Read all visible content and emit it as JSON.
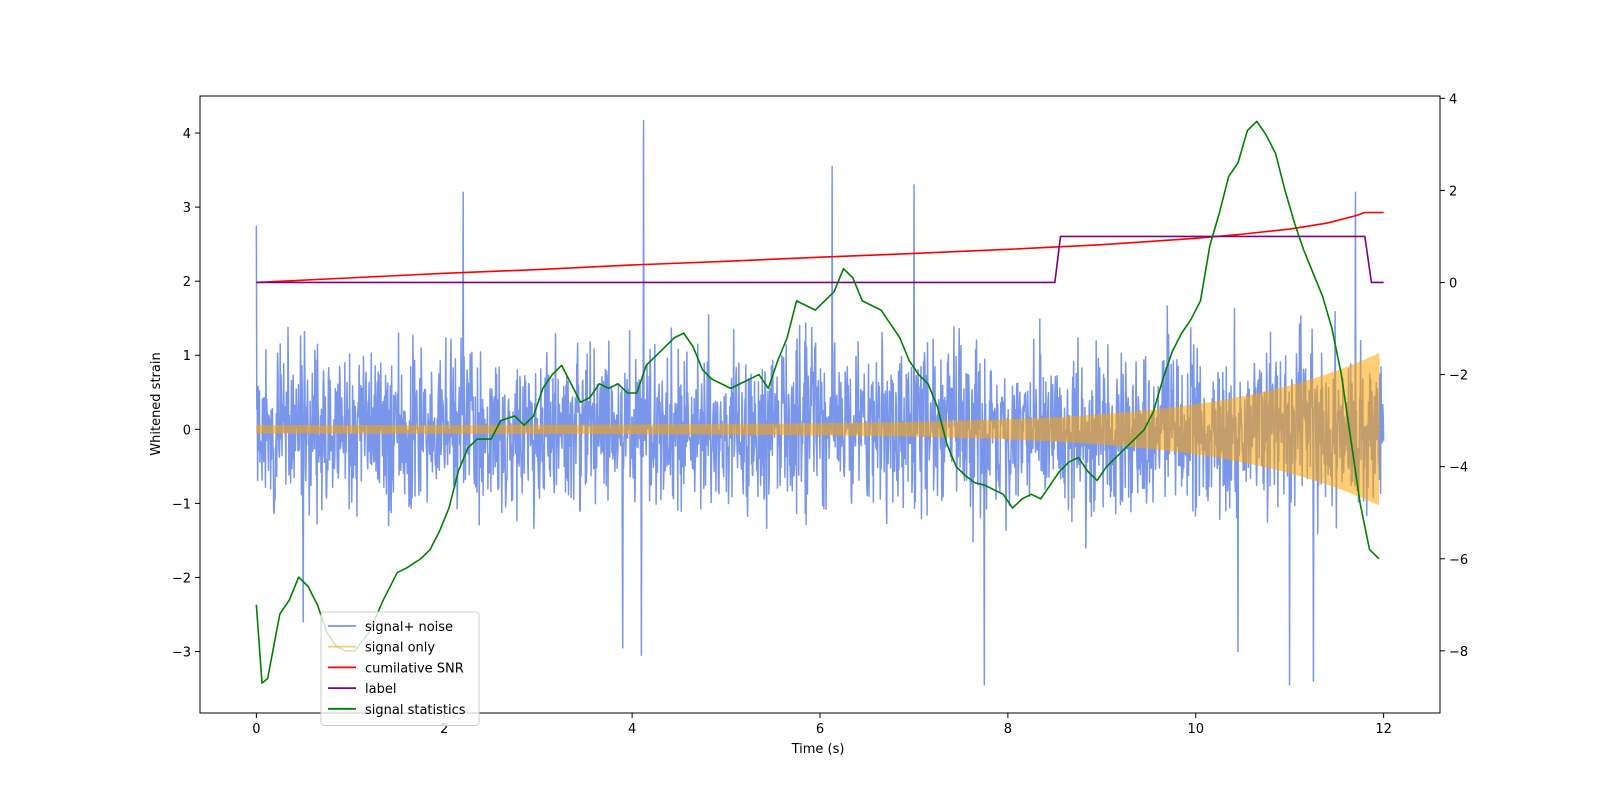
{
  "chart_data": {
    "type": "line",
    "title": "",
    "xlabel": "Time (s)",
    "ylabel": "Whitened strain",
    "y2label": "",
    "xlim": [
      -0.6,
      12.6
    ],
    "ylim": [
      -3.83,
      4.5
    ],
    "y2lim": [
      -9.35,
      4.05
    ],
    "xticks": [
      0,
      2,
      4,
      6,
      8,
      10,
      12
    ],
    "xtick_labels": [
      "0",
      "2",
      "4",
      "6",
      "8",
      "10",
      "12"
    ],
    "yticks": [
      -3,
      -2,
      -1,
      0,
      1,
      2,
      3,
      4
    ],
    "ytick_labels": [
      "−3",
      "−2",
      "−1",
      "0",
      "1",
      "2",
      "3",
      "4"
    ],
    "y2ticks": [
      -8,
      -6,
      -4,
      -2,
      0,
      2,
      4
    ],
    "y2tick_labels": [
      "−8",
      "−6",
      "−4",
      "−2",
      "0",
      "2",
      "4"
    ],
    "grid": false,
    "legend_position": "lower-left",
    "series": [
      {
        "name": "signal+ noise",
        "color": "#4169e1",
        "axis": "left",
        "kind": "noise",
        "duration": 12.0,
        "n_points": 2600,
        "noise_sigma": 0.75,
        "spikes": [
          {
            "x": 0.0,
            "y": 2.75
          },
          {
            "x": 4.12,
            "y": 4.17
          },
          {
            "x": 6.13,
            "y": 3.55
          },
          {
            "x": 2.2,
            "y": 3.2
          },
          {
            "x": 7.0,
            "y": 3.3
          },
          {
            "x": 11.7,
            "y": 3.2
          },
          {
            "x": 7.75,
            "y": -3.45
          },
          {
            "x": 11.0,
            "y": -3.45
          },
          {
            "x": 11.25,
            "y": -3.4
          },
          {
            "x": 4.1,
            "y": -3.05
          },
          {
            "x": 3.9,
            "y": -2.95
          },
          {
            "x": 0.5,
            "y": -2.6
          },
          {
            "x": 10.45,
            "y": -3.0
          }
        ]
      },
      {
        "name": "signal only",
        "color": "#ffa500",
        "axis": "left",
        "kind": "chirp",
        "duration": 11.95,
        "amp_start": 0.05,
        "amp_end": 0.9
      },
      {
        "name": "cumilative SNR",
        "color": "#ff0000",
        "axis": "right",
        "x": [
          0,
          1,
          2,
          3,
          4,
          5,
          6,
          7,
          8,
          9,
          10,
          10.5,
          11,
          11.4,
          11.7,
          11.8,
          11.85,
          12.0
        ],
        "values": [
          0.0,
          0.1,
          0.2,
          0.28,
          0.38,
          0.46,
          0.55,
          0.63,
          0.72,
          0.82,
          0.96,
          1.05,
          1.16,
          1.29,
          1.45,
          1.52,
          1.52,
          1.52
        ]
      },
      {
        "name": "label",
        "color": "#800080",
        "axis": "right",
        "x": [
          0,
          8.5,
          8.56,
          11.8,
          11.87,
          12.0
        ],
        "values": [
          0,
          0,
          1.0,
          1.0,
          0,
          0
        ]
      },
      {
        "name": "signal statistics",
        "color": "#008000",
        "axis": "right",
        "x": [
          0,
          0.06,
          0.12,
          0.25,
          0.35,
          0.45,
          0.55,
          0.65,
          0.75,
          0.85,
          0.95,
          1.05,
          1.2,
          1.35,
          1.5,
          1.6,
          1.75,
          1.85,
          1.95,
          2.05,
          2.15,
          2.25,
          2.35,
          2.5,
          2.6,
          2.75,
          2.85,
          2.95,
          3.05,
          3.15,
          3.25,
          3.35,
          3.45,
          3.55,
          3.65,
          3.75,
          3.85,
          3.95,
          4.05,
          4.15,
          4.25,
          4.35,
          4.45,
          4.55,
          4.65,
          4.75,
          4.85,
          4.95,
          5.05,
          5.15,
          5.25,
          5.35,
          5.45,
          5.55,
          5.65,
          5.75,
          5.85,
          5.95,
          6.05,
          6.15,
          6.25,
          6.35,
          6.45,
          6.55,
          6.65,
          6.75,
          6.85,
          6.95,
          7.05,
          7.15,
          7.25,
          7.35,
          7.45,
          7.55,
          7.65,
          7.75,
          7.85,
          7.95,
          8.05,
          8.15,
          8.25,
          8.35,
          8.45,
          8.55,
          8.65,
          8.75,
          8.85,
          8.95,
          9.05,
          9.15,
          9.25,
          9.35,
          9.45,
          9.55,
          9.65,
          9.75,
          9.85,
          9.95,
          10.05,
          10.15,
          10.25,
          10.35,
          10.45,
          10.55,
          10.65,
          10.75,
          10.85,
          10.95,
          11.05,
          11.15,
          11.25,
          11.35,
          11.45,
          11.55,
          11.65,
          11.75,
          11.85,
          11.95
        ],
        "values": [
          -7.0,
          -8.7,
          -8.6,
          -7.2,
          -6.9,
          -6.4,
          -6.6,
          -7.0,
          -7.6,
          -7.9,
          -8.0,
          -8.0,
          -7.6,
          -6.9,
          -6.3,
          -6.2,
          -6.0,
          -5.8,
          -5.4,
          -4.9,
          -4.1,
          -3.6,
          -3.4,
          -3.4,
          -3.0,
          -2.9,
          -3.1,
          -2.9,
          -2.3,
          -2.0,
          -1.8,
          -2.2,
          -2.6,
          -2.5,
          -2.2,
          -2.3,
          -2.2,
          -2.4,
          -2.4,
          -1.8,
          -1.6,
          -1.4,
          -1.2,
          -1.1,
          -1.4,
          -1.9,
          -2.1,
          -2.2,
          -2.3,
          -2.2,
          -2.1,
          -2.0,
          -2.3,
          -1.7,
          -1.2,
          -0.4,
          -0.5,
          -0.6,
          -0.4,
          -0.2,
          0.3,
          0.1,
          -0.4,
          -0.5,
          -0.6,
          -0.9,
          -1.2,
          -1.7,
          -2.0,
          -2.2,
          -2.7,
          -3.5,
          -4.0,
          -4.2,
          -4.35,
          -4.4,
          -4.5,
          -4.6,
          -4.9,
          -4.7,
          -4.6,
          -4.7,
          -4.4,
          -4.1,
          -3.9,
          -3.8,
          -4.1,
          -4.3,
          -4.0,
          -3.8,
          -3.6,
          -3.4,
          -3.2,
          -2.8,
          -2.1,
          -1.5,
          -1.1,
          -0.8,
          -0.4,
          0.8,
          1.5,
          2.3,
          2.6,
          3.3,
          3.5,
          3.2,
          2.8,
          2.0,
          1.3,
          0.7,
          0.2,
          -0.3,
          -1.0,
          -2.0,
          -3.4,
          -4.8,
          -5.8,
          -6.0
        ]
      }
    ]
  }
}
